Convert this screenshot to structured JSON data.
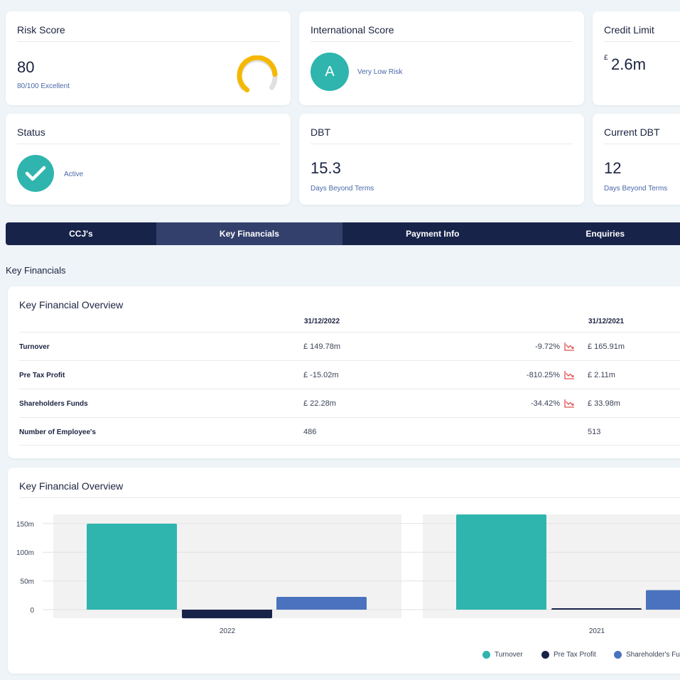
{
  "colors": {
    "teal": "#2fb5ae",
    "navy": "#18234a",
    "blue": "#4a72bf",
    "gauge": "#f5b800",
    "decline": "#e05050"
  },
  "cards": {
    "risk_score": {
      "title": "Risk Score",
      "value": "80",
      "subtitle": "80/100 Excellent",
      "gauge_fraction": 0.8
    },
    "international_score": {
      "title": "International Score",
      "grade": "A",
      "label": "Very Low Risk"
    },
    "credit_limit": {
      "title": "Credit Limit",
      "currency": "£",
      "value": "2.6m"
    },
    "status": {
      "title": "Status",
      "label": "Active",
      "icon": "check-icon"
    },
    "dbt": {
      "title": "DBT",
      "value": "15.3",
      "subtitle": "Days Beyond Terms"
    },
    "current_dbt": {
      "title": "Current DBT",
      "value": "12",
      "subtitle": "Days Beyond Terms"
    }
  },
  "tabs": [
    {
      "label": "CCJ's",
      "active": false
    },
    {
      "label": "Key Financials",
      "active": true
    },
    {
      "label": "Payment Info",
      "active": false
    },
    {
      "label": "Enquiries",
      "active": false
    }
  ],
  "section_heading": "Key Financials",
  "table": {
    "title": "Key Financial Overview",
    "columns": [
      "31/12/2022",
      "31/12/2021"
    ],
    "rows": [
      {
        "label": "Turnover",
        "v2022": "£ 149.78m",
        "change": "-9.72%",
        "trend_icon": "trend-down-icon",
        "v2021": "£ 165.91m"
      },
      {
        "label": "Pre Tax Profit",
        "v2022": "£ -15.02m",
        "change": "-810.25%",
        "trend_icon": "trend-down-icon",
        "v2021": "£ 2.11m"
      },
      {
        "label": "Shareholders Funds",
        "v2022": "£ 22.28m",
        "change": "-34.42%",
        "trend_icon": "trend-down-icon",
        "v2021": "£ 33.98m"
      },
      {
        "label": "Number of Employee's",
        "v2022": "486",
        "change": "",
        "trend_icon": "",
        "v2021": "513"
      }
    ]
  },
  "chart_card": {
    "title": "Key Financial Overview"
  },
  "chart_data": {
    "type": "bar",
    "categories": [
      "2022",
      "2021"
    ],
    "series": [
      {
        "name": "Turnover",
        "values": [
          149.78,
          165.91
        ],
        "color": "#2fb5ae"
      },
      {
        "name": "Pre Tax Profit",
        "values": [
          -15.02,
          2.11
        ],
        "color": "#18234a"
      },
      {
        "name": "Shareholder's Fu",
        "values": [
          22.28,
          33.98
        ],
        "color": "#4a72bf"
      }
    ],
    "yticks": [
      {
        "value": 150,
        "label": "150m"
      },
      {
        "value": 100,
        "label": "100m"
      },
      {
        "value": 50,
        "label": "50m"
      },
      {
        "value": 0,
        "label": "0"
      }
    ],
    "ylim": [
      -15.02,
      165.91
    ],
    "grid": true,
    "legend": "bottom-right"
  }
}
